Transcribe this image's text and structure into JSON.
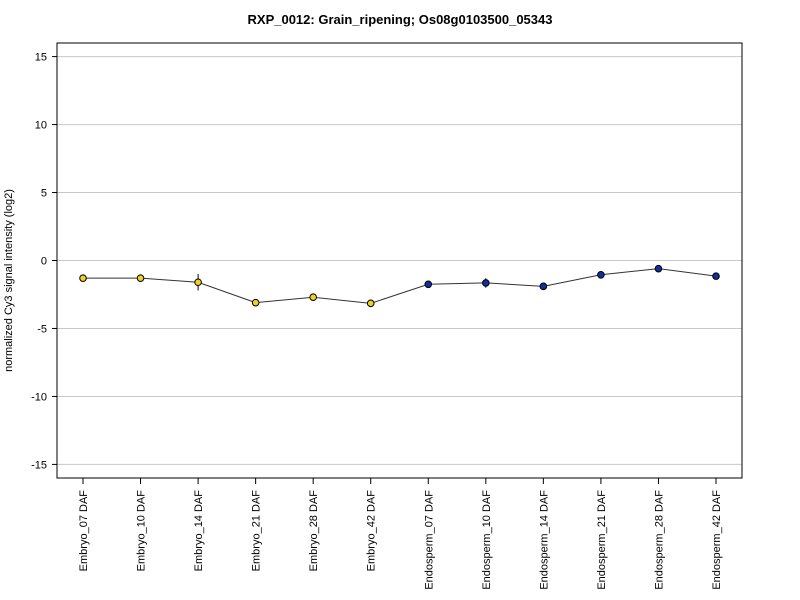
{
  "chart_data": {
    "type": "line",
    "title": "RXP_0012: Grain_ripening; Os08g0103500_05343",
    "xlabel": "",
    "ylabel": "normalized Cy3 signal intensity (log2)",
    "ylim": [
      -16,
      16
    ],
    "yticks": [
      -15,
      -10,
      -5,
      0,
      5,
      10,
      15
    ],
    "grid": true,
    "categories": [
      "Embryo_07 DAF",
      "Embryo_10 DAF",
      "Embryo_14 DAF",
      "Embryo_21 DAF",
      "Embryo_28 DAF",
      "Embryo_42 DAF",
      "Endosperm_07 DAF",
      "Endosperm_10 DAF",
      "Endosperm_14 DAF",
      "Endosperm_21 DAF",
      "Endosperm_28 DAF",
      "Endosperm_42 DAF"
    ],
    "values": [
      -1.3,
      -1.3,
      -1.6,
      -3.1,
      -2.7,
      -3.15,
      -1.75,
      -1.65,
      -1.9,
      -1.05,
      -0.6,
      -1.15
    ],
    "errors": [
      0.1,
      0.15,
      0.6,
      0.1,
      0.1,
      0.15,
      0.1,
      0.35,
      0.1,
      0.1,
      0.1,
      0.25
    ],
    "point_colors": [
      "#f0d020",
      "#f0d020",
      "#f0d020",
      "#f0d020",
      "#f0d020",
      "#f0d020",
      "#1030a0",
      "#1030a0",
      "#1030a0",
      "#1030a0",
      "#1030a0",
      "#1030a0"
    ]
  }
}
